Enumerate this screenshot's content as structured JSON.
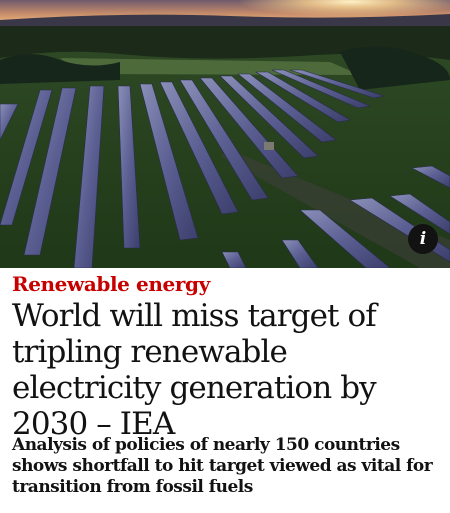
{
  "hero": {
    "image_subject": "aerial solar farm at sunset",
    "info_icon": "info-icon",
    "info_glyph": "i"
  },
  "article": {
    "kicker": "Renewable energy",
    "headline": "World will miss target of tripling renewable electricity generation by 2030 – IEA",
    "standfirst": "Analysis of policies of nearly 150 countries shows shortfall to hit target viewed as vital for transition from fossil fuels"
  },
  "colors": {
    "kicker": "#c70000",
    "text": "#121212",
    "background": "#ffffff"
  }
}
